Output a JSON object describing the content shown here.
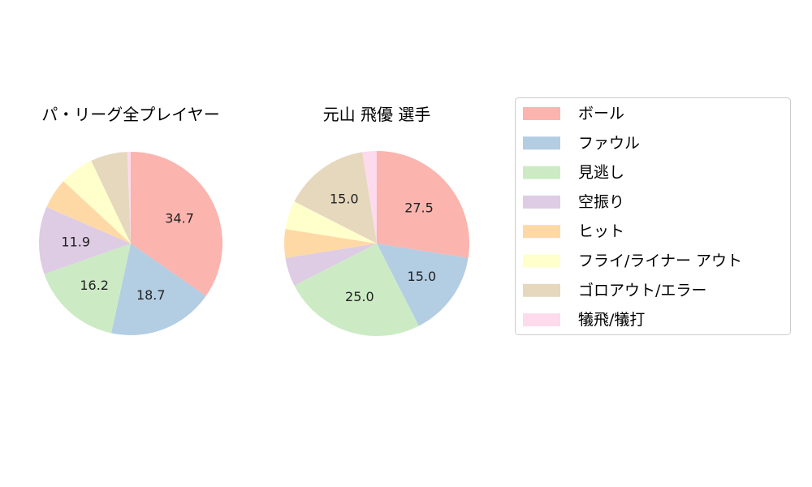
{
  "chart_data": [
    {
      "type": "pie",
      "title": "パ・リーグ全プレイヤー",
      "categories": [
        "ボール",
        "ファウル",
        "見逃し",
        "空振り",
        "ヒット",
        "フライ/ライナー アウト",
        "ゴロアウト/エラー",
        "犠飛/犠打"
      ],
      "values": [
        34.7,
        18.7,
        16.2,
        11.9,
        5.4,
        6.0,
        6.5,
        0.6
      ],
      "labels": [
        "34.7",
        "18.7",
        "16.2",
        "11.9",
        "",
        "",
        "",
        ""
      ]
    },
    {
      "type": "pie",
      "title": "元山 飛優  選手",
      "categories": [
        "ボール",
        "ファウル",
        "見逃し",
        "空振り",
        "ヒット",
        "フライ/ライナー アウト",
        "ゴロアウト/エラー",
        "犠飛/犠打"
      ],
      "values": [
        27.5,
        15.0,
        25.0,
        5.0,
        5.0,
        5.0,
        15.0,
        2.5
      ],
      "labels": [
        "27.5",
        "15.0",
        "25.0",
        "",
        "",
        "",
        "15.0",
        ""
      ]
    }
  ],
  "legend": {
    "placement": "right",
    "entries": [
      "ボール",
      "ファウル",
      "見逃し",
      "空振り",
      "ヒット",
      "フライ/ライナー アウト",
      "ゴロアウト/エラー",
      "犠飛/犠打"
    ]
  },
  "colors": [
    "#fbb4ae",
    "#b3cde3",
    "#ccebc5",
    "#decbe4",
    "#fed9a6",
    "#ffffcc",
    "#e5d8bd",
    "#fddaec"
  ]
}
